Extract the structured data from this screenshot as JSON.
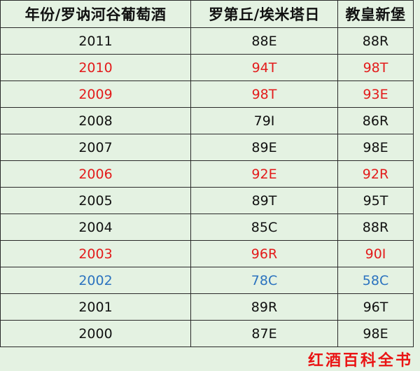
{
  "table": {
    "headers": [
      "年份/罗讷河谷葡萄酒",
      "罗第丘/埃米塔日",
      "教皇新堡"
    ],
    "rows": [
      {
        "year": "2011",
        "cote_rotie": "88E",
        "chateauneuf": "88R",
        "highlight": "none"
      },
      {
        "year": "2010",
        "cote_rotie": "94T",
        "chateauneuf": "98T",
        "highlight": "red"
      },
      {
        "year": "2009",
        "cote_rotie": "98T",
        "chateauneuf": "93E",
        "highlight": "red"
      },
      {
        "year": "2008",
        "cote_rotie": "79I",
        "chateauneuf": "86R",
        "highlight": "none"
      },
      {
        "year": "2007",
        "cote_rotie": "89E",
        "chateauneuf": "98E",
        "highlight": "none"
      },
      {
        "year": "2006",
        "cote_rotie": "92E",
        "chateauneuf": "92R",
        "highlight": "red"
      },
      {
        "year": "2005",
        "cote_rotie": "89T",
        "chateauneuf": "95T",
        "highlight": "none"
      },
      {
        "year": "2004",
        "cote_rotie": "85C",
        "chateauneuf": "88R",
        "highlight": "none"
      },
      {
        "year": "2003",
        "cote_rotie": "96R",
        "chateauneuf": "90I",
        "highlight": "red"
      },
      {
        "year": "2002",
        "cote_rotie": "78C",
        "chateauneuf": "58C",
        "highlight": "blue"
      },
      {
        "year": "2001",
        "cote_rotie": "89R",
        "chateauneuf": "96T",
        "highlight": "none"
      },
      {
        "year": "2000",
        "cote_rotie": "87E",
        "chateauneuf": "98E",
        "highlight": "none"
      }
    ]
  },
  "watermark": "红酒百科全书",
  "colors": {
    "background": "#e4f2e2",
    "text": "#111111",
    "highlight_red": "#e31b1b",
    "highlight_blue": "#2b73bf",
    "watermark": "#ea1414"
  }
}
